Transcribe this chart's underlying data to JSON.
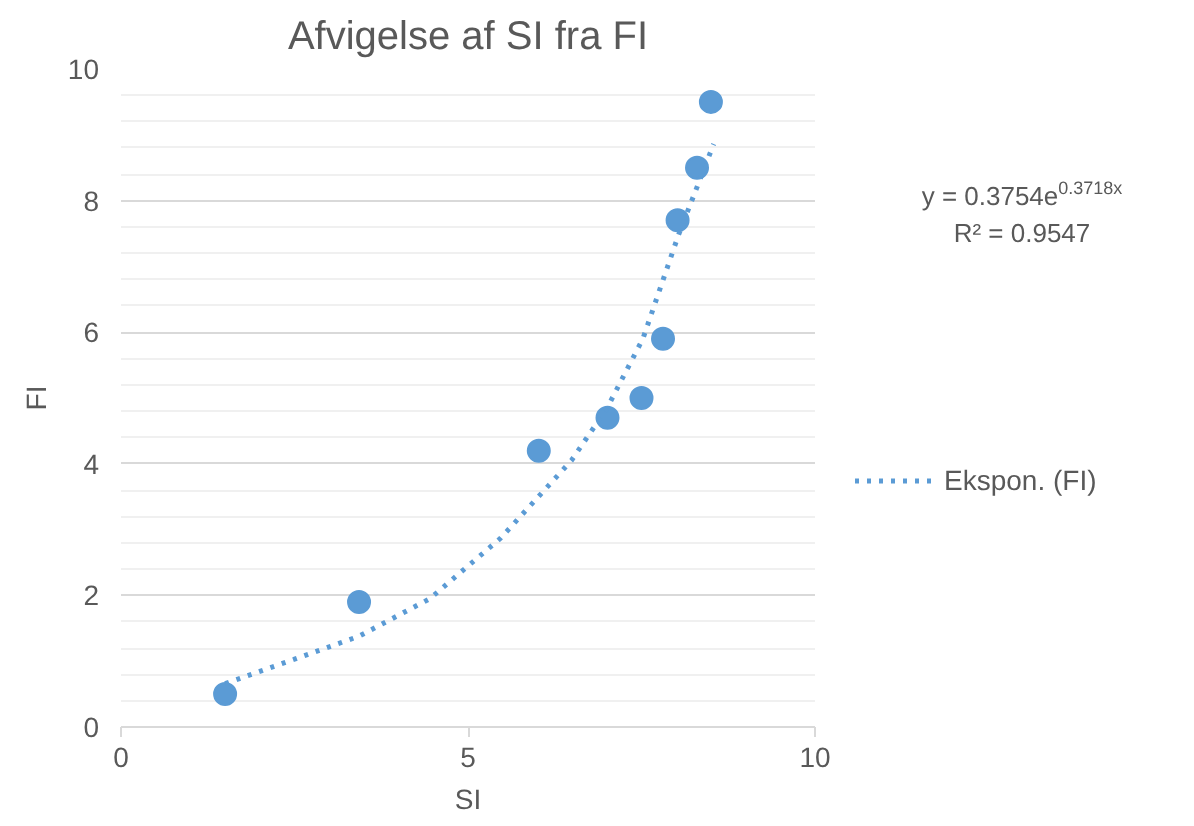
{
  "chart_data": {
    "type": "scatter",
    "title": "Afvigelse af SI fra FI",
    "xlabel": "SI",
    "ylabel": "FI",
    "annotations": [
      "y = 0.3754e$^{0.3718x}$",
      "R² = 0.9547"
    ],
    "series": [
      {
        "type": "scatter",
        "color": "#5b9bd5",
        "marker": "circle",
        "x": [
          1.5,
          3.43,
          6.02,
          7.01,
          7.5,
          7.81,
          8.02,
          8.3,
          8.5
        ],
        "values": [
          0.5,
          1.9,
          4.2,
          4.7,
          5.0,
          5.9,
          7.7,
          8.5,
          9.5
        ]
      },
      {
        "type": "line",
        "name": "Ekspon. (FI)",
        "color": "#5b9bd5",
        "line_style": "dotted",
        "x": [
          1.5,
          2.5,
          3.43,
          4.45,
          5.47,
          6.49,
          7.0,
          7.52,
          8.03,
          8.54
        ],
        "values": [
          0.66,
          1.03,
          1.38,
          1.95,
          2.87,
          4.05,
          4.84,
          5.9,
          7.47,
          8.86
        ]
      }
    ],
    "xlim": [
      0,
      10
    ],
    "xticks": [
      0,
      5,
      10
    ],
    "ylim": [
      0,
      10
    ],
    "yticks": [
      0,
      2,
      4,
      6,
      8,
      10
    ],
    "grid": "y",
    "legend": "right"
  }
}
